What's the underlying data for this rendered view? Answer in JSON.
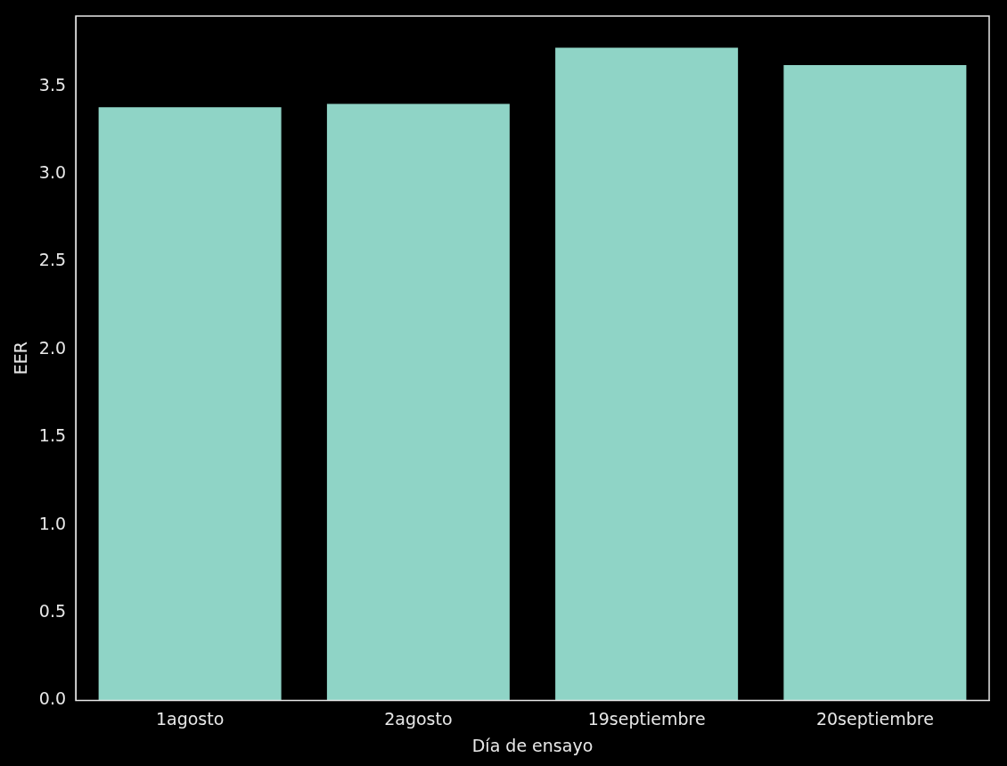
{
  "chart_data": {
    "type": "bar",
    "xlabel": "Día de ensayo",
    "ylabel": "EER",
    "categories": [
      "1agosto",
      "2agosto",
      "19septiembre",
      "20septiembre"
    ],
    "values": [
      3.38,
      3.4,
      3.72,
      3.62
    ],
    "color": "#8fd4c6",
    "ylim": [
      0,
      3.9
    ],
    "yticks": [
      {
        "value": 0,
        "label": "0.0"
      },
      0.5,
      {
        "value": 1,
        "label": "1.0"
      },
      1.5,
      {
        "value": 2,
        "label": "2.0"
      },
      2.5,
      {
        "value": 3,
        "label": "3.0"
      },
      3.5
    ],
    "grid": false,
    "legend": false
  }
}
